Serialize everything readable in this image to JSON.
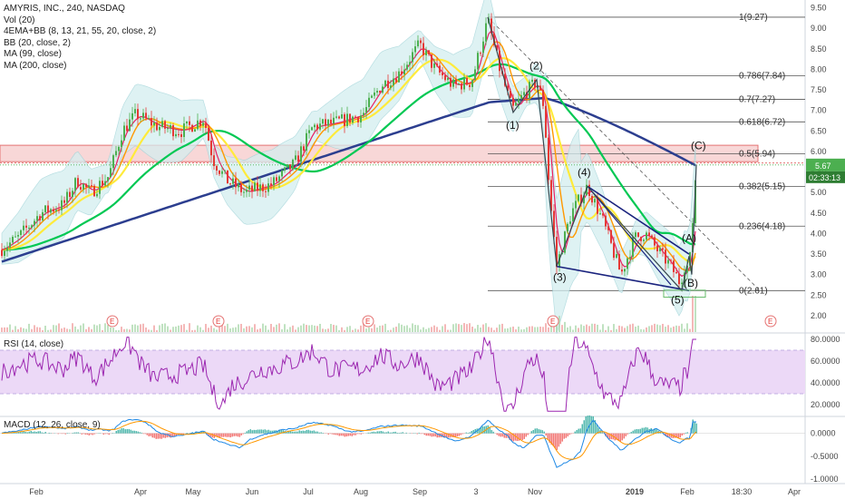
{
  "legend": {
    "title": "AMYRIS, INC., 240, NASDAQ",
    "lines": [
      "Vol (20)",
      "4EMA+BB (8, 13, 21, 55, 20, close, 2)",
      "BB (20, close, 2)",
      "MA (99, close)",
      "MA (200, close)"
    ]
  },
  "colors": {
    "up": "#4caf50",
    "down": "#e53935",
    "ema8": "#e91e63",
    "ema13": "#ff9800",
    "ema21": "#ffeb3b",
    "ema55": "#00c853",
    "ma200": "#2c3e8f",
    "bb": "#9fd3d8",
    "fib_line": "#555555",
    "wedge": "#1a237e",
    "rsi_line": "#9c27b0",
    "rsi_band": "#ecd9f7",
    "macd": "#1e88e5",
    "signal": "#ff9800",
    "zone": "#f8d7d7",
    "price_tag": "#4caf50",
    "time_tag": "#2e7d32"
  },
  "price_axis": {
    "min": 1.6,
    "max": 9.6,
    "ticks": [
      "9.50",
      "9.00",
      "8.50",
      "8.00",
      "7.50",
      "7.00",
      "6.50",
      "6.00",
      "5.50",
      "5.00",
      "4.50",
      "4.00",
      "3.50",
      "3.00",
      "2.50",
      "2.00"
    ]
  },
  "last_price": "5.67",
  "countdown": "02:33:13",
  "fib_levels": [
    {
      "label": "1(9.27)",
      "value": 9.27
    },
    {
      "label": "0.786(7.84)",
      "value": 7.84
    },
    {
      "label": "0.7(7.27)",
      "value": 7.27
    },
    {
      "label": "0.618(6.72)",
      "value": 6.72
    },
    {
      "label": "0.5(5.94)",
      "value": 5.94
    },
    {
      "label": "0.382(5.15)",
      "value": 5.15
    },
    {
      "label": "0.236(4.18)",
      "value": 4.18
    },
    {
      "label": "0(2.61)",
      "value": 2.61
    }
  ],
  "wave_labels": [
    "(1)",
    "(2)",
    "(3)",
    "(4)",
    "(5)",
    "(A)",
    "(B)",
    "(C)"
  ],
  "earnings_marker": "E",
  "rsi": {
    "label": "RSI (14, close)",
    "ticks": [
      "80.0000",
      "60.0000",
      "40.0000",
      "20.0000"
    ]
  },
  "macd": {
    "label": "MACD (12, 26, close, 9)",
    "ticks": [
      "0.0000",
      "-0.5000",
      "-1.0000"
    ]
  },
  "time_axis": [
    "Feb",
    "Apr",
    "May",
    "Jun",
    "Jul",
    "Aug",
    "Sep",
    "3",
    "Nov",
    "2019",
    "Feb",
    "18:30",
    "Apr"
  ],
  "chart_data": {
    "type": "candlestick",
    "symbol": "AMYRIS, INC.",
    "interval": "240",
    "exchange": "NASDAQ",
    "x": [
      "Feb",
      "Apr",
      "May",
      "Jun",
      "Jul",
      "Aug",
      "Sep",
      "3",
      "Nov",
      "2019",
      "Feb",
      "18:30",
      "Apr"
    ],
    "swing_points": [
      {
        "label": "(1)",
        "price": 6.95
      },
      {
        "label": "(2)",
        "price": 7.75
      },
      {
        "label": "(3)",
        "price": 3.2
      },
      {
        "label": "(4)",
        "price": 5.15
      },
      {
        "label": "(5)",
        "price": 2.61
      },
      {
        "label": "(A)",
        "price": 3.45
      },
      {
        "label": "(B)",
        "price": 3.0
      },
      {
        "label": "(C)",
        "price": 5.67
      }
    ],
    "fib_retracement": {
      "high": 9.27,
      "low": 2.61
    },
    "resistance_zone": [
      5.75,
      6.15
    ],
    "ylim": [
      1.6,
      9.6
    ],
    "rsi_ylim": [
      10,
      85
    ],
    "rsi_band": [
      30,
      70
    ],
    "macd_ylim": [
      -1.1,
      0.35
    ]
  }
}
